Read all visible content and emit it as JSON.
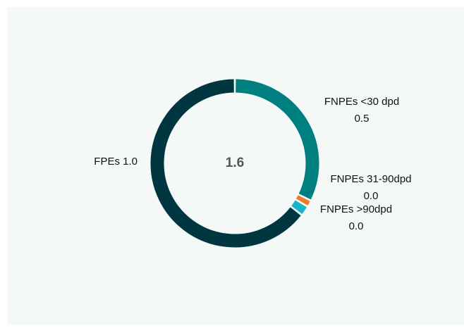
{
  "chart_data": {
    "type": "donut",
    "categories": [
      "FNPEs <30 dpd",
      "FNPEs 31-90dpd",
      "FNPEs >90dpd",
      "FPEs"
    ],
    "values": [
      0.5,
      0.02,
      0.03,
      1.0
    ],
    "value_labels": [
      "0.5",
      "0.0",
      "0.0",
      "1.0"
    ],
    "colors": [
      "#007f80",
      "#f0792a",
      "#17b3c7",
      "#00363f"
    ],
    "center_label": "1.6"
  }
}
